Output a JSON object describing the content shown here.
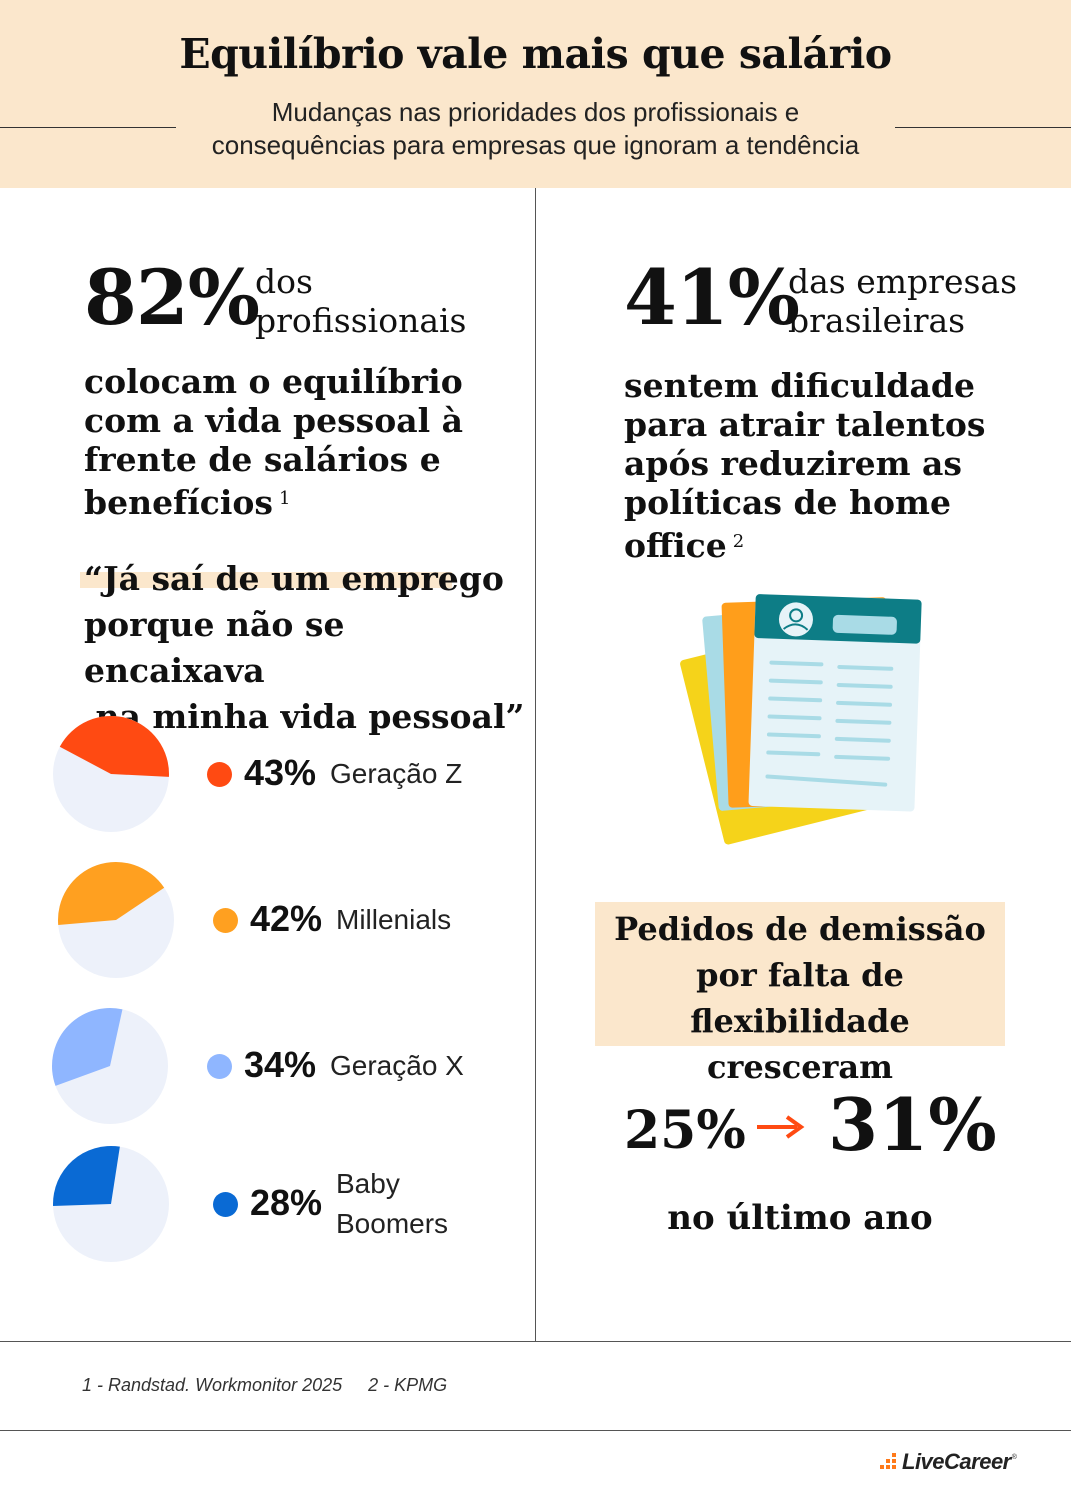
{
  "header": {
    "title": "Equilíbrio vale mais que salário",
    "subtitle_line1": "Mudanças nas prioridades dos profissionais e",
    "subtitle_line2": "consequências para empresas que ignoram a tendência"
  },
  "left": {
    "stat_value": "82%",
    "stat_caption_line1": "dos",
    "stat_caption_line2": "profissionais",
    "statement_lines": [
      "colocam o equilíbrio",
      "com a vida pessoal à",
      "frente de salários e",
      "benefícios"
    ],
    "statement_ref": "1",
    "quote_lines": [
      "“Já saí de um emprego",
      "porque não se encaixava",
      " na minha vida pessoal”"
    ]
  },
  "chart_data": {
    "type": "pie",
    "series": [
      {
        "label": "Geração Z",
        "label_lines": [
          "Geração Z"
        ],
        "value": 43,
        "display": "43%",
        "color": "#ff4a12"
      },
      {
        "label": "Millenials",
        "label_lines": [
          "Millenials"
        ],
        "value": 42,
        "display": "42%",
        "color": "#ffa020"
      },
      {
        "label": "Geração X",
        "label_lines": [
          "Geração X"
        ],
        "value": 34,
        "display": "34%",
        "color": "#8fb6ff"
      },
      {
        "label": "Baby Boomers",
        "label_lines": [
          "Baby",
          "Boomers"
        ],
        "value": 28,
        "display": "28%",
        "color": "#0a6ad4"
      }
    ],
    "remainder_color": "#edf1fa",
    "max": 100
  },
  "right": {
    "stat_value": "41%",
    "stat_caption_line1": "das empresas",
    "stat_caption_line2": "brasileiras",
    "statement_lines": [
      "sentem dificuldade",
      "para atrair talentos",
      "após reduzirem as",
      "políticas de home office"
    ],
    "statement_ref": "2",
    "illustration_icon": "resume-documents-icon",
    "resign_box_lines": [
      "Pedidos de demissão",
      "por falta de flexibilidade",
      "cresceram"
    ],
    "from_value": "25%",
    "to_value": "31%",
    "arrow_icon": "right-arrow-icon",
    "accent_color": "#ff4a12",
    "period": "no último ano"
  },
  "footer": {
    "source1": "1 -  Randstad. Workmonitor 2025",
    "source2": "2 -  KPMG",
    "logo_text": "LiveCareer",
    "logo_mark": "®"
  },
  "colors": {
    "header_bg": "#fbe7cc",
    "teal": "#0d7d86",
    "paper_light": "#e6f3f8"
  }
}
